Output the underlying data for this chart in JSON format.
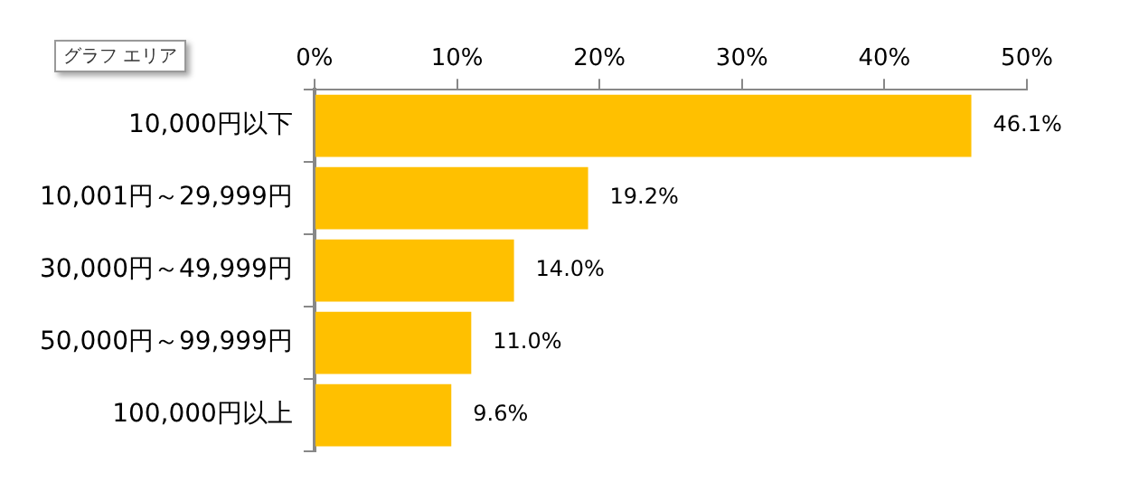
{
  "chart_data": {
    "type": "bar",
    "orientation": "horizontal",
    "categories": [
      "10,000円以下",
      "10,001円～29,999円",
      "30,000円～49,999円",
      "50,000円～99,999円",
      "100,000円以上"
    ],
    "values": [
      46.1,
      19.2,
      14.0,
      11.0,
      9.6
    ],
    "value_labels": [
      "46.1%",
      "19.2%",
      "14.0%",
      "11.0%",
      "9.6%"
    ],
    "color": "#ffc000",
    "xlim": [
      0,
      50
    ],
    "xticks": [
      {
        "value": 0,
        "label": "0%"
      },
      {
        "value": 10,
        "label": "10%"
      },
      {
        "value": 20,
        "label": "20%"
      },
      {
        "value": 30,
        "label": "30%"
      },
      {
        "value": 40,
        "label": "40%"
      },
      {
        "value": 50,
        "label": "50%"
      }
    ],
    "grid": false,
    "legend": false,
    "annotations": [
      "グラフ エリア"
    ]
  }
}
